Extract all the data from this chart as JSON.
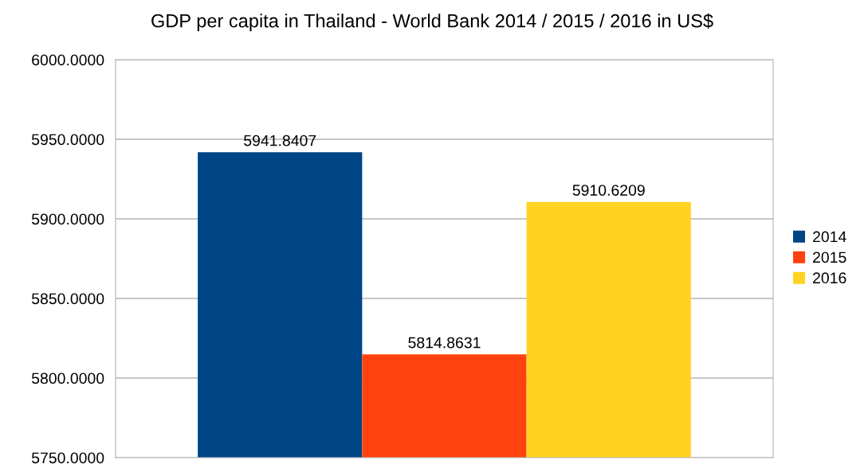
{
  "chart_data": {
    "type": "bar",
    "title": "GDP per capita in Thailand - World Bank 2014 / 2015 / 2016 in US$",
    "categories": [
      null
    ],
    "series": [
      {
        "name": "2014",
        "color": "#004586",
        "values": [
          5941.8407
        ]
      },
      {
        "name": "2015",
        "color": "#ff420e",
        "values": [
          5814.8631
        ]
      },
      {
        "name": "2016",
        "color": "#ffd320",
        "values": [
          5910.6209
        ]
      }
    ],
    "ylim": [
      5750,
      6000
    ],
    "yticks": [
      {
        "value": 5750,
        "label": "5750.0000"
      },
      {
        "value": 5800,
        "label": "5800.0000"
      },
      {
        "value": 5850,
        "label": "5850.0000"
      },
      {
        "value": 5900,
        "label": "5900.0000"
      },
      {
        "value": 5950,
        "label": "5950.0000"
      },
      {
        "value": 6000,
        "label": "6000.0000"
      }
    ],
    "grid": "y",
    "legend": "right",
    "data_labels": true
  }
}
